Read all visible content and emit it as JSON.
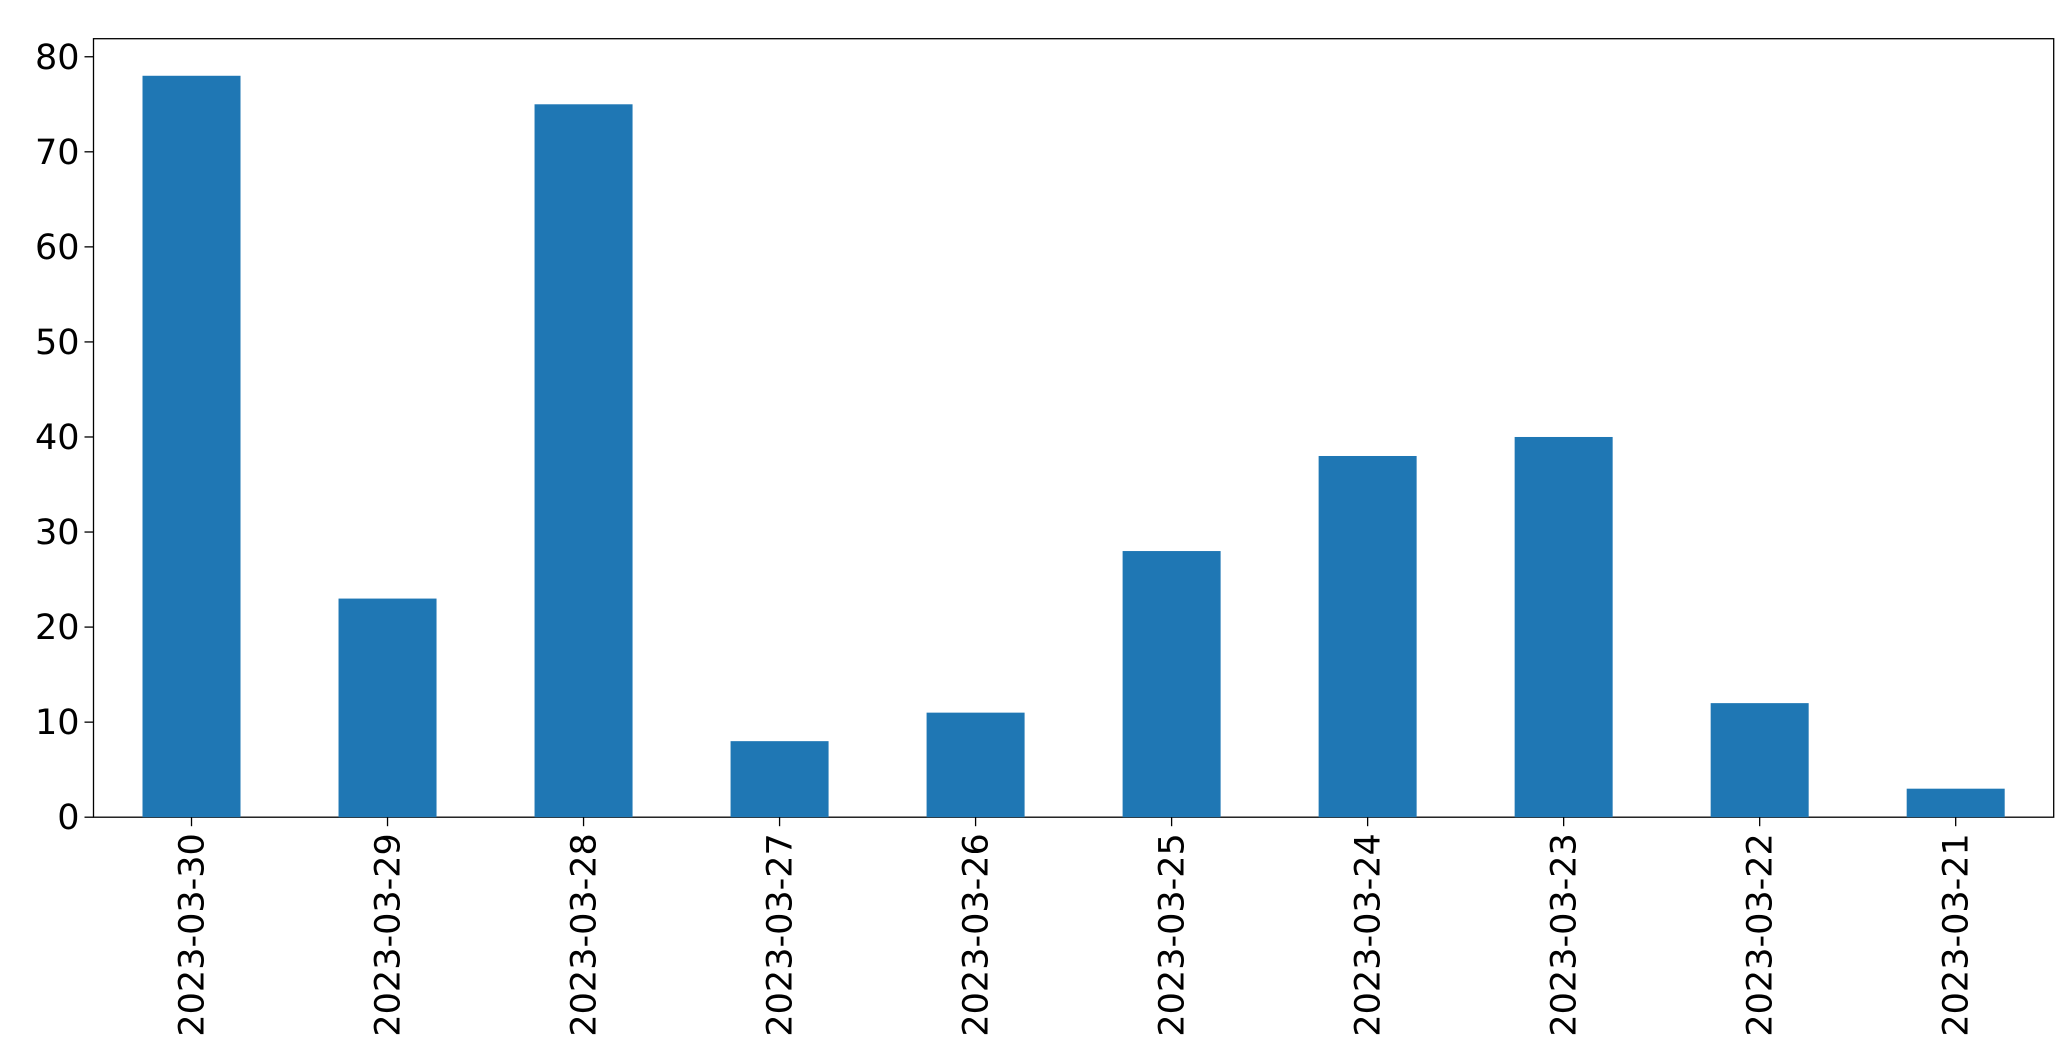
{
  "chart_data": {
    "type": "bar",
    "categories": [
      "2023-03-30",
      "2023-03-29",
      "2023-03-28",
      "2023-03-27",
      "2023-03-26",
      "2023-03-25",
      "2023-03-24",
      "2023-03-23",
      "2023-03-22",
      "2023-03-21"
    ],
    "values": [
      78,
      23,
      75,
      8,
      11,
      28,
      38,
      40,
      12,
      3
    ],
    "color": "#1f77b4",
    "ylim": [
      0,
      81.9
    ],
    "yticks": [
      0,
      10,
      20,
      30,
      40,
      50,
      60,
      70,
      80
    ],
    "grid": false
  }
}
